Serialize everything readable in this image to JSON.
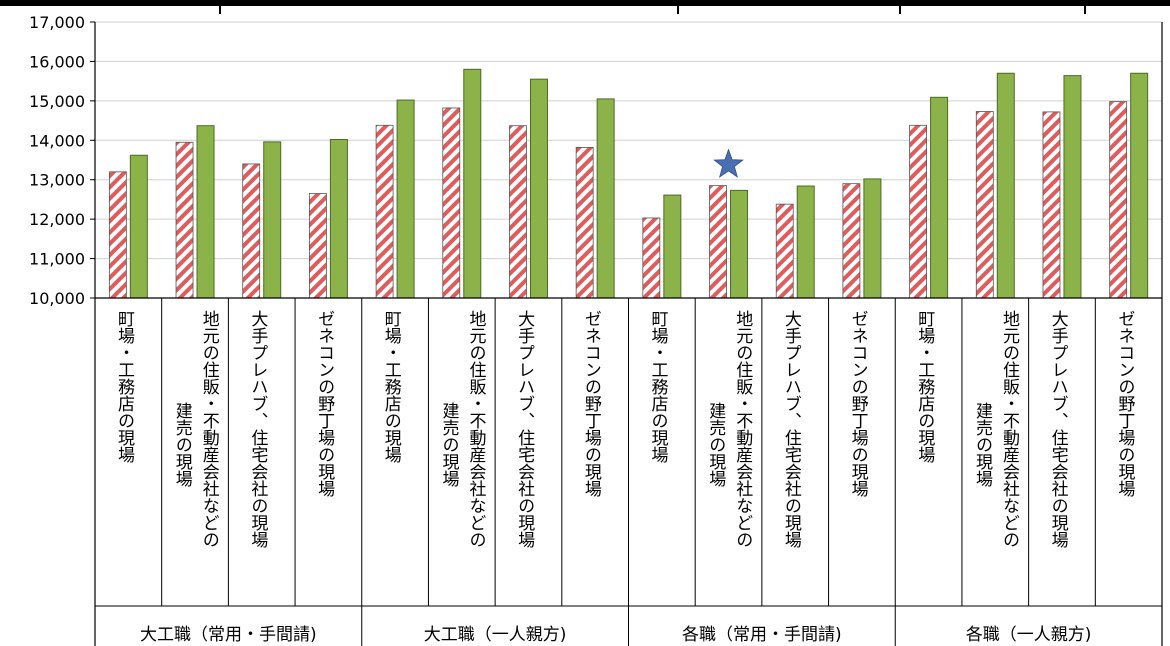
{
  "chart_data": {
    "type": "bar",
    "title": "",
    "xlabel": "",
    "ylabel": "",
    "ylim": [
      10000,
      17000
    ],
    "yticks": [
      "10,000",
      "11,000",
      "12,000",
      "13,000",
      "14,000",
      "15,000",
      "16,000",
      "17,000"
    ],
    "ytick_values": [
      10000,
      11000,
      12000,
      13000,
      14000,
      15000,
      16000,
      17000
    ],
    "grid": true,
    "legend": "none",
    "groups": [
      {
        "label": "大工職（常用・手間請)",
        "span": 4
      },
      {
        "label": "大工職（一人親方)",
        "span": 4
      },
      {
        "label": "各職（常用・手間請)",
        "span": 4
      },
      {
        "label": "各職（一人親方)",
        "span": 4
      }
    ],
    "categories": [
      {
        "line1": "町場・工務店の現場",
        "line2": ""
      },
      {
        "line1": "地元の住販・不動産会社などの",
        "line2": "建売の現場"
      },
      {
        "line1": "大手プレハブ、住宅会社の現場",
        "line2": ""
      },
      {
        "line1": "ゼネコンの野丁場の現場",
        "line2": ""
      },
      {
        "line1": "町場・工務店の現場",
        "line2": ""
      },
      {
        "line1": "地元の住販・不動産会社などの",
        "line2": "建売の現場"
      },
      {
        "line1": "大手プレハブ、住宅会社の現場",
        "line2": ""
      },
      {
        "line1": "ゼネコンの野丁場の現場",
        "line2": ""
      },
      {
        "line1": "町場・工務店の現場",
        "line2": ""
      },
      {
        "line1": "地元の住販・不動産会社などの",
        "line2": "建売の現場"
      },
      {
        "line1": "大手プレハブ、住宅会社の現場",
        "line2": ""
      },
      {
        "line1": "ゼネコンの野丁場の現場",
        "line2": ""
      },
      {
        "line1": "町場・工務店の現場",
        "line2": ""
      },
      {
        "line1": "地元の住販・不動産会社などの",
        "line2": "建売の現場"
      },
      {
        "line1": "大手プレハブ、住宅会社の現場",
        "line2": ""
      },
      {
        "line1": "ゼネコンの野丁場の現場",
        "line2": ""
      }
    ],
    "series": [
      {
        "values": [
          13200,
          13950,
          13400,
          12650,
          14380,
          14820,
          14370,
          13820,
          12030,
          12850,
          12380,
          12900,
          14380,
          14730,
          14720,
          14980
        ],
        "color": "#e05b5b",
        "pattern": "diagonal-stripes"
      },
      {
        "values": [
          13620,
          14370,
          13960,
          14020,
          15020,
          15800,
          15550,
          15050,
          12610,
          12730,
          12840,
          13020,
          15090,
          15700,
          15640,
          15700
        ],
        "color": "#8cb34a",
        "pattern": "solid"
      }
    ],
    "annotations": [
      {
        "type": "star",
        "category_index": 9,
        "value": 13380,
        "color": "#4a6fb0"
      }
    ]
  }
}
